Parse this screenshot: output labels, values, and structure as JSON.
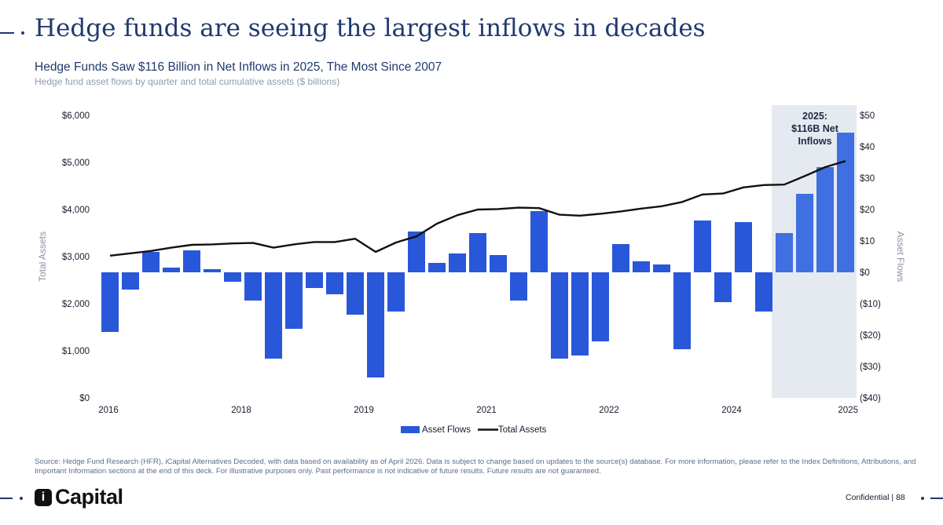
{
  "header": {
    "title": "Hedge funds are seeing the largest inflows in decades"
  },
  "chart_data": {
    "type": "bar",
    "title": "Hedge Funds Saw $116 Billion in Net Inflows in 2025, The Most Since 2007",
    "subtitle": "Hedge fund asset flows by quarter and total cumulative assets ($ billions)",
    "ylabel_left": "Total Assets",
    "ylabel_right": "Asset Flows",
    "ylim_left": [
      0,
      6000
    ],
    "ylim_right": [
      -40,
      50
    ],
    "y_ticks_left": [
      "$0",
      "$1,000",
      "$2,000",
      "$3,000",
      "$4,000",
      "$5,000",
      "$6,000"
    ],
    "y_ticks_right": [
      "($40)",
      "($30)",
      "($20)",
      "($10)",
      "$0",
      "$10",
      "$20",
      "$30",
      "$40",
      "$50"
    ],
    "x_tick_labels": [
      "2016",
      "2018",
      "2019",
      "2021",
      "2022",
      "2024",
      "2025"
    ],
    "legend": [
      "Asset Flows",
      "Total Assets"
    ],
    "legend_position": "bottom",
    "annotation": [
      "2025:",
      "$116B Net",
      "Inflows"
    ],
    "series": [
      {
        "name": "Asset Flows",
        "axis": "right",
        "values": [
          -19,
          -5.5,
          6.5,
          1.5,
          7,
          1,
          -3,
          -9,
          -27.5,
          -18,
          -5,
          -7,
          -13.5,
          -33.5,
          -12.5,
          13,
          3,
          6,
          12.5,
          5.5,
          -9,
          19.5,
          -27.5,
          -26.5,
          -22,
          9,
          3.5,
          2.5,
          -24.5,
          16.5,
          -9.5,
          16,
          -12.5,
          12.5,
          25,
          33.5,
          44.5
        ]
      },
      {
        "name": "Total Assets",
        "axis": "left",
        "values": [
          3020,
          3070,
          3120,
          3190,
          3250,
          3260,
          3280,
          3290,
          3190,
          3260,
          3310,
          3310,
          3380,
          3100,
          3300,
          3430,
          3700,
          3880,
          4000,
          4010,
          4040,
          4030,
          3890,
          3870,
          3910,
          3960,
          4020,
          4070,
          4160,
          4320,
          4340,
          4470,
          4520,
          4530,
          4710,
          4900,
          5030
        ]
      }
    ],
    "colors": {
      "bars": "#2957d9",
      "bars_2025": "#3f6fe0",
      "line": "#111111",
      "highlight": "#e5e9f0"
    }
  },
  "footer": {
    "source": "Source: Hedge Fund Research (HFR), iCapital Alternatives Decoded, with data based on availability as of April 2026. Data is subject to change based on updates to the source(s) database. For more information, please refer to the Index Definitions, Attributions, and Important Information sections at the end of this deck. For illustrative purposes only. Past performance is not indicative of future results. Future results are not guaranteed.",
    "logo_mark": "i",
    "logo_text": "Capital",
    "confidential": "Confidential  |  88"
  }
}
